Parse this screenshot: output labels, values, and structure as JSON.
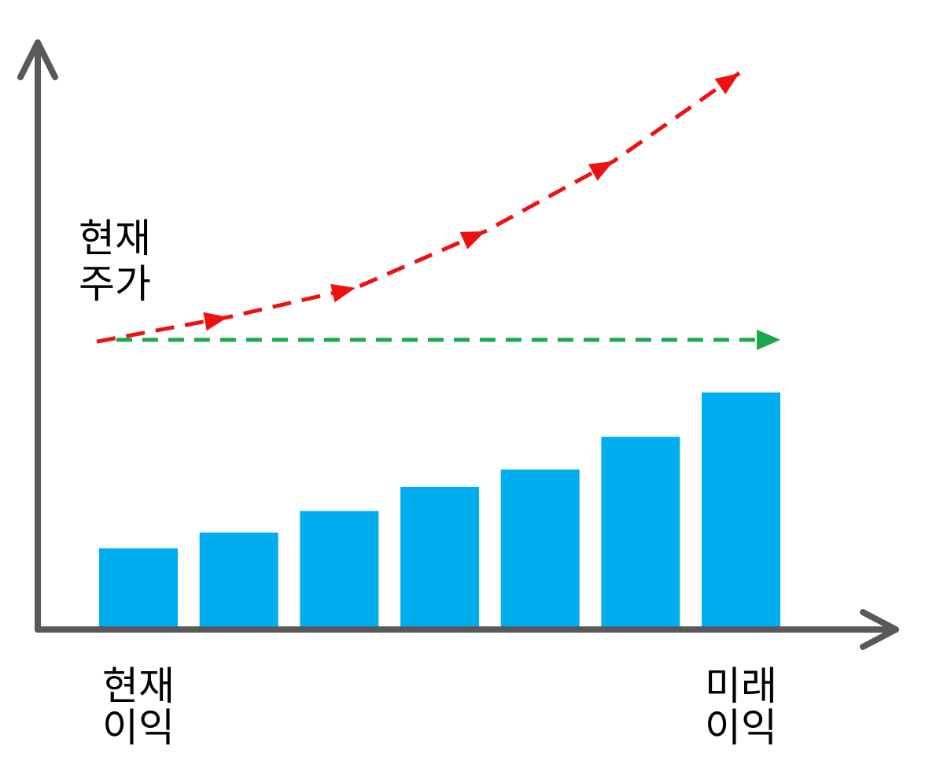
{
  "chart_data": {
    "type": "bar",
    "categories": [
      "현재\n이익",
      "",
      "",
      "",
      "",
      "",
      "미래\n이익"
    ],
    "series": [
      {
        "type": "bar",
        "values": [
          13.5,
          16.2,
          19.9,
          24.0,
          27.0,
          32.6,
          40.2
        ],
        "color": "#00AEEF"
      }
    ],
    "lines": [
      {
        "type": "line",
        "style": "dashed",
        "arrowheads": "along",
        "color": "#EE1111",
        "x": [
          -0.415,
          0.893,
          2.162,
          3.454,
          4.731,
          5.984
        ],
        "y": [
          48.9,
          53.1,
          58.1,
          67.8,
          79.8,
          94.9
        ]
      },
      {
        "type": "line",
        "style": "dashed",
        "arrowheads": "end",
        "color": "#19A84C",
        "x": [
          -0.22,
          6.392
        ],
        "y": [
          49.2,
          49.2
        ]
      }
    ],
    "annotations": [
      {
        "text": "현재\n주가"
      }
    ],
    "ylim": [
      0,
      100
    ],
    "axes": {
      "ticks": false,
      "arrows": true,
      "color": "#595959"
    },
    "grid": false,
    "legend": "none"
  }
}
